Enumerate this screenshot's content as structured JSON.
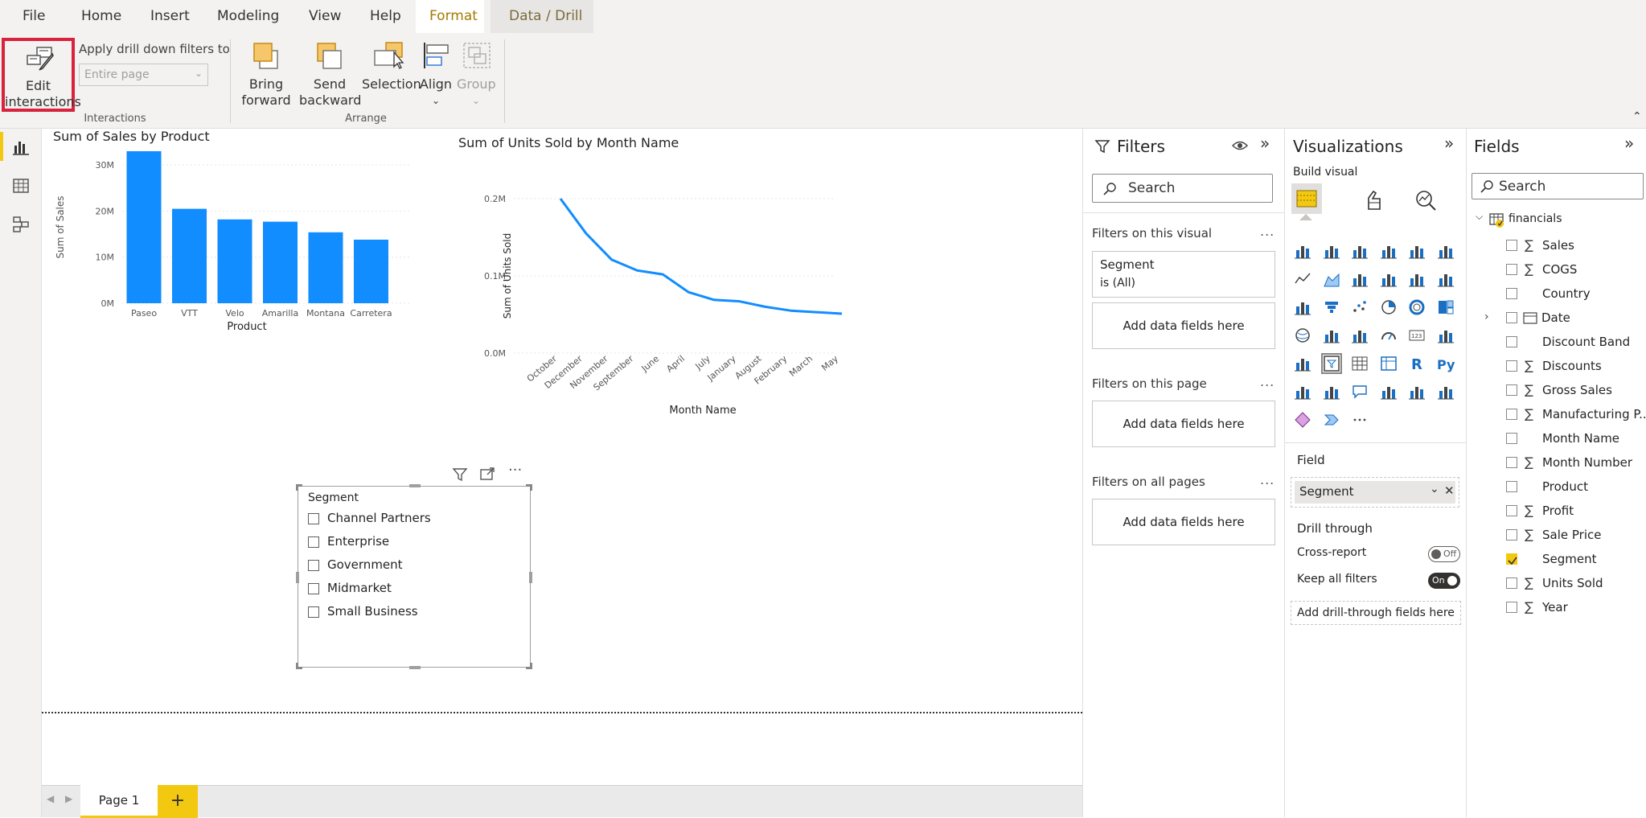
{
  "menu": {
    "items": [
      "File",
      "Home",
      "Insert",
      "Modeling",
      "View",
      "Help",
      "Format",
      "Data / Drill"
    ]
  },
  "ribbon": {
    "edit_interactions_line1": "Edit",
    "edit_interactions_line2": "interactions",
    "apply_drill_label": "Apply drill down filters to",
    "apply_drill_value": "Entire page",
    "interactions_group": "Interactions",
    "bring_forward_line1": "Bring",
    "bring_forward_line2": "forward",
    "send_backward_line1": "Send",
    "send_backward_line2": "backward",
    "selection": "Selection",
    "align": "Align",
    "group": "Group",
    "arrange_group": "Arrange"
  },
  "bar_chart": {
    "title": "Sum of Sales by Product",
    "ylabel": "Sum of Sales",
    "xlabel": "Product",
    "ticks": [
      "30M",
      "20M",
      "10M",
      "0M"
    ]
  },
  "line_chart": {
    "title": "Sum of Units Sold by Month Name",
    "ylabel": "Sum of Units Sold",
    "xlabel": "Month Name",
    "ticks": [
      "0.2M",
      "0.1M",
      "0.0M"
    ]
  },
  "chart_data": [
    {
      "type": "bar",
      "title": "Sum of Sales by Product",
      "xlabel": "Product",
      "ylabel": "Sum of Sales",
      "categories": [
        "Paseo",
        "VTT",
        "Velo",
        "Amarilla",
        "Montana",
        "Carretera"
      ],
      "values": [
        33.0,
        20.5,
        18.2,
        17.7,
        15.4,
        13.8
      ],
      "unit": "M",
      "ylim": [
        0,
        33
      ],
      "color": "#118dff"
    },
    {
      "type": "line",
      "title": "Sum of Units Sold by Month Name",
      "xlabel": "Month Name",
      "ylabel": "Sum of Units Sold",
      "x": [
        "October",
        "December",
        "November",
        "September",
        "June",
        "April",
        "July",
        "January",
        "August",
        "February",
        "March",
        "May"
      ],
      "values": [
        0.2,
        0.155,
        0.121,
        0.107,
        0.102,
        0.079,
        0.069,
        0.067,
        0.06,
        0.055,
        0.053,
        0.051
      ],
      "unit": "M",
      "ylim": [
        0,
        0.2
      ],
      "color": "#118dff"
    }
  ],
  "slicer": {
    "header": "Segment",
    "items": [
      "Channel Partners",
      "Enterprise",
      "Government",
      "Midmarket",
      "Small Business"
    ]
  },
  "page_tabs": {
    "page1": "Page 1",
    "add": "+"
  },
  "filters": {
    "title": "Filters",
    "search_placeholder": "Search",
    "on_visual": "Filters on this visual",
    "segment_card_line1": "Segment",
    "segment_card_line2": "is (All)",
    "add_fields": "Add data fields here",
    "on_page": "Filters on this page",
    "on_all_pages": "Filters on all pages",
    "dots": "..."
  },
  "visualizations": {
    "title": "Visualizations",
    "build_visual": "Build visual",
    "field_label": "Field",
    "field_value": "Segment",
    "drill_through": "Drill through",
    "cross_report": "Cross-report",
    "cross_report_state": "Off",
    "keep_filters": "Keep all filters",
    "keep_filters_state": "On",
    "add_drill": "Add drill-through fields here",
    "r_label": "R",
    "py_label": "Py",
    "more": "···"
  },
  "fields": {
    "title": "Fields",
    "search_placeholder": "Search",
    "table": "financials",
    "items": [
      {
        "name": "Sales",
        "sigma": "∑",
        "checked": false
      },
      {
        "name": "COGS",
        "sigma": "∑",
        "checked": false
      },
      {
        "name": "Country",
        "sigma": "",
        "checked": false
      },
      {
        "name": "Date",
        "sigma": "",
        "checked": false
      },
      {
        "name": "Discount Band",
        "sigma": "",
        "checked": false
      },
      {
        "name": "Discounts",
        "sigma": "∑",
        "checked": false
      },
      {
        "name": "Gross Sales",
        "sigma": "∑",
        "checked": false
      },
      {
        "name": "Manufacturing P...",
        "sigma": "∑",
        "checked": false
      },
      {
        "name": "Month Name",
        "sigma": "",
        "checked": false
      },
      {
        "name": "Month Number",
        "sigma": "∑",
        "checked": false
      },
      {
        "name": "Product",
        "sigma": "",
        "checked": false
      },
      {
        "name": "Profit",
        "sigma": "∑",
        "checked": false
      },
      {
        "name": "Sale Price",
        "sigma": "∑",
        "checked": false
      },
      {
        "name": "Segment",
        "sigma": "",
        "checked": true
      },
      {
        "name": "Units Sold",
        "sigma": "∑",
        "checked": false
      },
      {
        "name": "Year",
        "sigma": "∑",
        "checked": false
      }
    ]
  },
  "colors": {
    "accent": "#c19c00",
    "brand": "#f2c811",
    "highlight_box": "#d9223d",
    "chart": "#118dff"
  }
}
